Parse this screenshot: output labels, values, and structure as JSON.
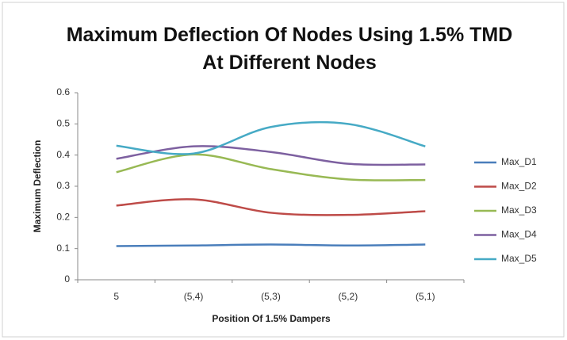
{
  "chart_data": {
    "type": "line",
    "title": "Maximum Deflection Of Nodes Using 1.5% TMD At Different Nodes",
    "xlabel": "Position Of 1.5% Dampers",
    "ylabel": "Maximum Deflection",
    "categories": [
      "5",
      "(5,4)",
      "(5,3)",
      "(5,2)",
      "(5,1)"
    ],
    "series": [
      {
        "name": "Max_D1",
        "color": "#4a7ebb",
        "values": [
          0.108,
          0.11,
          0.113,
          0.11,
          0.113
        ]
      },
      {
        "name": "Max_D2",
        "color": "#be4b48",
        "values": [
          0.238,
          0.258,
          0.215,
          0.208,
          0.22
        ]
      },
      {
        "name": "Max_D3",
        "color": "#98b954",
        "values": [
          0.345,
          0.402,
          0.355,
          0.322,
          0.32
        ]
      },
      {
        "name": "Max_D4",
        "color": "#7d60a0",
        "values": [
          0.388,
          0.428,
          0.41,
          0.372,
          0.37
        ]
      },
      {
        "name": "Max_D5",
        "color": "#46aac5",
        "values": [
          0.43,
          0.405,
          0.49,
          0.5,
          0.428
        ]
      }
    ],
    "ylim": [
      0,
      0.6
    ],
    "yticks": [
      0,
      0.1,
      0.2,
      0.3,
      0.4,
      0.5,
      0.6
    ],
    "legend": "right",
    "smooth": true
  }
}
